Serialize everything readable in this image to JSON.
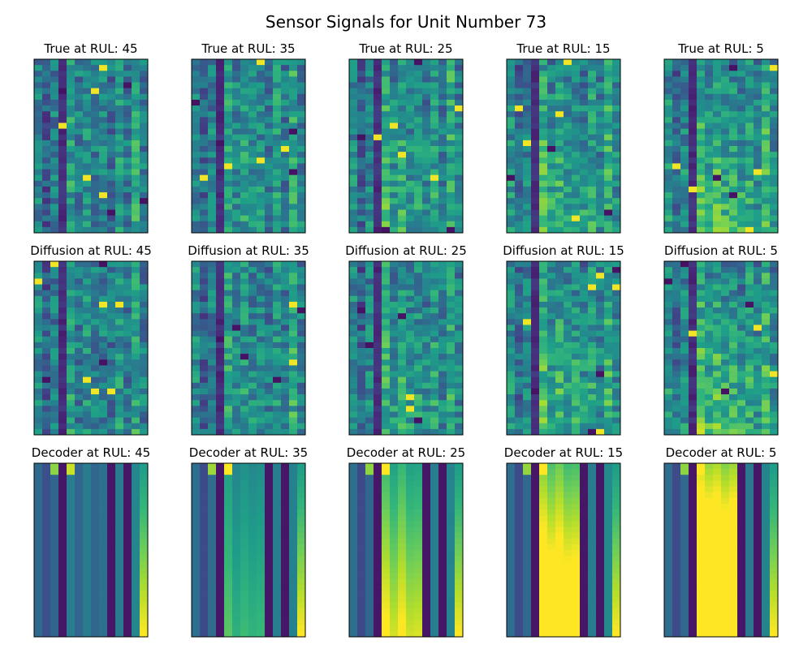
{
  "title": "Sensor Signals for Unit Number 73",
  "chart_data": {
    "type": "heatmap",
    "colormap": "viridis",
    "grid": false,
    "axis_ticks": false,
    "layout": {
      "rows": [
        "True",
        "Diffusion",
        "Decoder"
      ],
      "rul_values": [
        45,
        35,
        25,
        15,
        5
      ]
    },
    "panels": [
      {
        "title": "True at RUL: 45"
      },
      {
        "title": "True at RUL: 35"
      },
      {
        "title": "True at RUL: 25"
      },
      {
        "title": "True at RUL: 15"
      },
      {
        "title": "True at RUL: 5"
      },
      {
        "title": "Diffusion at RUL: 45"
      },
      {
        "title": "Diffusion at RUL: 35"
      },
      {
        "title": "Diffusion at RUL: 25"
      },
      {
        "title": "Diffusion at RUL: 15"
      },
      {
        "title": "Diffusion at RUL: 5"
      },
      {
        "title": "Decoder at RUL: 45"
      },
      {
        "title": "Decoder at RUL: 35"
      },
      {
        "title": "Decoder at RUL: 25"
      },
      {
        "title": "Decoder at RUL: 15"
      },
      {
        "title": "Decoder at RUL: 5"
      }
    ]
  }
}
